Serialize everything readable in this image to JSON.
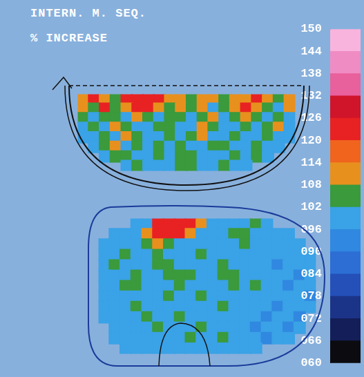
{
  "chart_data": {
    "type": "heatmap",
    "title": "INTERN. M. SEQ.",
    "subtitle": "% INCREASE",
    "tick_labels": false,
    "panels": [
      {
        "cells": [
          [
            111,
            123,
            111,
            105,
            123,
            123,
            123,
            123,
            111,
            111,
            105,
            111,
            111,
            105,
            111,
            111,
            123,
            111,
            105,
            111
          ],
          [
            111,
            105,
            123,
            105,
            111,
            123,
            123,
            111,
            105,
            111,
            105,
            111,
            99,
            105,
            111,
            123,
            111,
            105,
            99,
            111
          ],
          [
            105,
            99,
            105,
            105,
            99,
            111,
            105,
            99,
            105,
            105,
            99,
            105,
            111,
            99,
            105,
            111,
            105,
            99,
            105,
            99
          ],
          [
            99,
            105,
            99,
            111,
            105,
            99,
            99,
            105,
            105,
            99,
            99,
            111,
            105,
            99,
            99,
            105,
            99,
            105,
            111,
            99
          ],
          [
            99,
            99,
            105,
            99,
            111,
            105,
            99,
            99,
            105,
            99,
            105,
            111,
            99,
            99,
            105,
            99,
            99,
            105,
            99,
            99
          ],
          [
            null,
            99,
            105,
            111,
            99,
            105,
            99,
            105,
            99,
            105,
            99,
            99,
            105,
            105,
            99,
            99,
            105,
            99,
            99,
            null
          ],
          [
            null,
            null,
            99,
            105,
            105,
            99,
            99,
            105,
            99,
            105,
            105,
            99,
            99,
            99,
            105,
            99,
            105,
            99,
            null,
            null
          ],
          [
            null,
            null,
            null,
            null,
            99,
            105,
            99,
            99,
            99,
            105,
            105,
            99,
            99,
            105,
            99,
            99,
            null,
            null,
            null,
            null
          ]
        ]
      },
      {
        "cells": [
          [
            null,
            null,
            null,
            99,
            99,
            123,
            123,
            123,
            123,
            111,
            99,
            99,
            99,
            99,
            105,
            99,
            null,
            null,
            null,
            null
          ],
          [
            null,
            99,
            99,
            99,
            111,
            123,
            123,
            123,
            111,
            99,
            99,
            99,
            105,
            105,
            99,
            99,
            99,
            99,
            null,
            null
          ],
          [
            99,
            99,
            99,
            99,
            105,
            111,
            105,
            99,
            99,
            99,
            99,
            99,
            99,
            105,
            99,
            99,
            99,
            99,
            99,
            null
          ],
          [
            99,
            99,
            105,
            99,
            99,
            105,
            99,
            99,
            99,
            105,
            99,
            99,
            99,
            99,
            99,
            99,
            99,
            99,
            99,
            99
          ],
          [
            99,
            105,
            99,
            99,
            99,
            105,
            105,
            99,
            99,
            99,
            99,
            105,
            99,
            99,
            99,
            99,
            93,
            99,
            99,
            99
          ],
          [
            99,
            99,
            99,
            105,
            99,
            99,
            105,
            105,
            105,
            99,
            99,
            105,
            105,
            99,
            99,
            99,
            99,
            99,
            93,
            99
          ],
          [
            99,
            99,
            105,
            105,
            99,
            99,
            99,
            105,
            99,
            99,
            99,
            99,
            105,
            99,
            105,
            99,
            99,
            93,
            99,
            99
          ],
          [
            99,
            99,
            99,
            99,
            99,
            99,
            105,
            99,
            99,
            105,
            99,
            99,
            99,
            99,
            99,
            99,
            99,
            99,
            99,
            93
          ],
          [
            99,
            99,
            99,
            105,
            99,
            99,
            99,
            99,
            99,
            99,
            99,
            105,
            99,
            99,
            99,
            99,
            93,
            99,
            99,
            99
          ],
          [
            99,
            99,
            99,
            99,
            105,
            99,
            99,
            105,
            99,
            99,
            99,
            99,
            99,
            99,
            99,
            93,
            99,
            99,
            93,
            null
          ],
          [
            null,
            99,
            99,
            99,
            99,
            105,
            99,
            99,
            99,
            105,
            99,
            99,
            99,
            99,
            93,
            99,
            99,
            93,
            99,
            null
          ],
          [
            null,
            99,
            99,
            99,
            99,
            99,
            99,
            99,
            105,
            99,
            99,
            105,
            99,
            99,
            99,
            93,
            99,
            99,
            null,
            null
          ],
          [
            null,
            null,
            99,
            99,
            99,
            99,
            99,
            99,
            99,
            99,
            99,
            99,
            99,
            99,
            99,
            null,
            null,
            null,
            null,
            null
          ]
        ]
      }
    ],
    "colorbar": {
      "range": [
        60,
        150
      ],
      "ticks": [
        {
          "value": 60,
          "label": "060"
        },
        {
          "value": 66,
          "label": "066"
        },
        {
          "value": 72,
          "label": "072"
        },
        {
          "value": 78,
          "label": "078"
        },
        {
          "value": 84,
          "label": "084"
        },
        {
          "value": 90,
          "label": "090"
        },
        {
          "value": 96,
          "label": "096"
        },
        102,
        108,
        114,
        120,
        126,
        132,
        138,
        144,
        150
      ],
      "colors": [
        "#0c0c10",
        "#141e58",
        "#1c3488",
        "#2450b8",
        "#2c6ed4",
        "#3088e0",
        "#3aa2e6",
        "#3a9a3c",
        "#e8901e",
        "#f0641e",
        "#e82222",
        "#d0142a",
        "#e8609c",
        "#f08cc4",
        "#f8b4dc"
      ]
    }
  }
}
